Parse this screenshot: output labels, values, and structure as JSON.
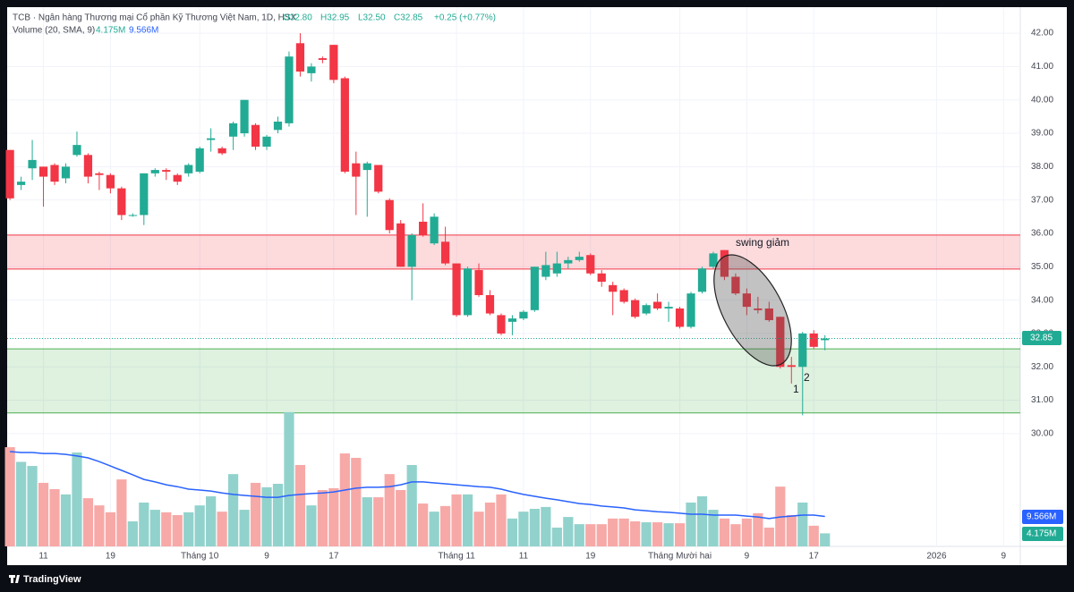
{
  "chart_data": {
    "type": "candlestick",
    "title": "TCB · Ngân hàng Thương mại Cổ phần Kỹ Thương Việt Nam, 1D, HSX",
    "ohlc_labels": [
      "O32.80",
      "H32.95",
      "L32.50",
      "C32.85"
    ],
    "change_label": "+0.25 (+0.77%)",
    "price_label": "32.85",
    "footer": "TradingView",
    "up_color": "#22ab94",
    "down_color": "#f23645",
    "open": [
      38.5,
      37.45,
      37.95,
      38.0,
      38.05,
      37.65,
      38.35,
      38.35,
      37.8,
      37.75,
      37.35,
      36.55,
      36.55,
      37.8,
      37.9,
      37.75,
      37.8,
      37.85,
      38.8,
      38.55,
      38.9,
      39.0,
      39.25,
      38.6,
      39.1,
      39.3,
      41.7,
      40.8,
      41.25,
      41.65,
      40.65,
      38.1,
      37.9,
      38.05,
      37.0,
      36.3,
      35.0,
      36.35,
      35.7,
      35.75,
      35.1,
      33.55,
      34.9,
      34.15,
      33.55,
      33.35,
      33.45,
      33.7,
      34.7,
      34.8,
      35.1,
      35.2,
      35.35,
      34.8,
      34.45,
      34.3,
      34.0,
      33.6,
      33.95,
      33.75,
      33.75,
      33.2,
      34.25,
      35.0,
      35.5,
      34.7,
      34.2,
      33.75,
      33.75,
      33.5,
      32.05,
      32.0,
      33.0,
      32.8
    ],
    "high": [
      38.5,
      37.7,
      38.8,
      38.0,
      38.1,
      38.1,
      39.05,
      38.4,
      37.85,
      37.8,
      37.4,
      36.6,
      37.8,
      37.95,
      37.95,
      37.8,
      38.1,
      38.6,
      39.15,
      38.6,
      39.35,
      40.0,
      39.3,
      38.95,
      39.5,
      41.45,
      42.0,
      41.1,
      41.3,
      41.65,
      40.7,
      38.45,
      38.15,
      38.05,
      37.05,
      36.4,
      36.0,
      36.9,
      36.6,
      36.2,
      35.1,
      35.0,
      35.1,
      34.3,
      33.6,
      33.55,
      33.7,
      35.0,
      35.45,
      35.45,
      35.3,
      35.45,
      35.4,
      34.9,
      34.55,
      34.35,
      34.05,
      33.9,
      34.2,
      33.95,
      33.8,
      34.25,
      35.0,
      35.45,
      35.5,
      34.8,
      34.35,
      34.1,
      33.95,
      33.5,
      32.3,
      33.05,
      33.1,
      32.95
    ],
    "low": [
      37.0,
      37.3,
      37.6,
      36.8,
      37.45,
      37.5,
      38.3,
      37.5,
      37.3,
      37.2,
      36.4,
      36.5,
      36.25,
      37.7,
      37.6,
      37.45,
      37.7,
      37.8,
      38.45,
      38.35,
      38.5,
      38.9,
      38.5,
      38.5,
      39.0,
      39.2,
      40.7,
      40.55,
      41.1,
      40.5,
      37.8,
      36.55,
      36.5,
      37.2,
      36.0,
      35.0,
      34.0,
      35.9,
      35.65,
      35.05,
      33.5,
      33.5,
      34.1,
      33.55,
      32.95,
      32.95,
      33.4,
      33.65,
      34.6,
      34.7,
      34.95,
      35.15,
      34.75,
      34.4,
      33.55,
      33.9,
      33.45,
      33.55,
      33.7,
      33.35,
      33.15,
      33.15,
      34.2,
      34.95,
      34.6,
      34.15,
      33.55,
      33.6,
      33.35,
      31.95,
      31.5,
      30.55,
      32.55,
      32.5
    ],
    "close": [
      37.05,
      37.55,
      38.2,
      37.7,
      37.55,
      38.0,
      38.65,
      37.7,
      37.75,
      37.35,
      36.55,
      36.55,
      37.8,
      37.9,
      37.85,
      37.55,
      38.05,
      38.55,
      38.85,
      38.4,
      39.3,
      40.0,
      38.6,
      38.9,
      39.35,
      41.3,
      40.85,
      41.0,
      41.2,
      40.6,
      37.85,
      37.7,
      38.1,
      37.25,
      36.1,
      35.0,
      35.95,
      35.95,
      36.5,
      35.1,
      33.55,
      34.95,
      34.15,
      33.6,
      33.0,
      33.45,
      33.65,
      35.0,
      35.05,
      35.1,
      35.2,
      35.3,
      34.8,
      34.55,
      34.25,
      33.95,
      33.5,
      33.85,
      33.75,
      33.8,
      33.2,
      34.2,
      34.95,
      35.4,
      34.7,
      34.2,
      33.8,
      33.7,
      33.4,
      32.0,
      32.0,
      33.0,
      32.6,
      32.85
    ],
    "volume": {
      "name": "Volume (20, SMA, 9)",
      "up_color": "#92d2cc",
      "down_color": "#f7a9a7",
      "last_label": "4.175M",
      "values": [
        31.7,
        27,
        25.7,
        20.3,
        18.3,
        16.6,
        30,
        15.4,
        13.1,
        10.9,
        21.4,
        8,
        14,
        11.7,
        10.9,
        10,
        10.9,
        13.1,
        16,
        11.1,
        23.1,
        11.7,
        20.3,
        18.9,
        20,
        42.9,
        26,
        13.1,
        18,
        18.6,
        29.7,
        28.3,
        15.7,
        15.7,
        23.1,
        18,
        26,
        13.7,
        11.1,
        12.9,
        16.6,
        16.6,
        11.1,
        14,
        16.6,
        8.9,
        11.1,
        12,
        12.6,
        6,
        9.4,
        7.1,
        7.1,
        7.1,
        8.9,
        8.9,
        8,
        7.7,
        7.7,
        7.4,
        7.4,
        14,
        16,
        11.7,
        8.9,
        7.1,
        8.9,
        10.6,
        6,
        19.1,
        10,
        14,
        6.6,
        4.175
      ]
    },
    "sma": {
      "color": "#2962ff",
      "last_label": "9.566M",
      "values": [
        30.3,
        30.0,
        30.0,
        29.7,
        29.7,
        29.4,
        28.9,
        28.3,
        27.1,
        25.7,
        24.3,
        22.9,
        21.4,
        20.6,
        19.7,
        19.1,
        18.3,
        18.0,
        17.7,
        17.1,
        16.6,
        16.3,
        16.0,
        15.7,
        15.7,
        16.3,
        16.6,
        16.9,
        17.1,
        17.4,
        18.0,
        18.6,
        18.9,
        18.9,
        19.1,
        19.7,
        20.6,
        20.6,
        20.3,
        20.0,
        19.7,
        19.4,
        19.1,
        18.9,
        18.3,
        17.4,
        16.6,
        16.0,
        15.4,
        14.9,
        14.3,
        13.7,
        13.4,
        12.9,
        12.6,
        12.3,
        11.7,
        11.4,
        11.1,
        10.9,
        10.6,
        10.3,
        10.3,
        10.0,
        10.0,
        10.0,
        9.7,
        9.4,
        8.9,
        9.4,
        9.7,
        10.0,
        10.0,
        9.566
      ]
    },
    "zones": [
      {
        "low": 34.93,
        "high": 35.95,
        "color": "#f23645"
      },
      {
        "low": 30.62,
        "high": 32.54,
        "color": "#4caf50"
      }
    ],
    "annotations": [
      "swing giảm",
      "1",
      "2"
    ],
    "xlim": [
      -0.25,
      90.5
    ],
    "ylim": [
      26.62,
      42.78
    ],
    "vlim": [
      0,
      172.3
    ],
    "yticks": [
      {
        "value": 30,
        "label": "30.00"
      },
      {
        "value": 31,
        "label": "31.00"
      },
      {
        "value": 32,
        "label": "32.00"
      },
      {
        "value": 33,
        "label": "33.00"
      },
      {
        "value": 34,
        "label": "34.00"
      },
      {
        "value": 35,
        "label": "35.00"
      },
      {
        "value": 36,
        "label": "36.00"
      },
      {
        "value": 37,
        "label": "37.00"
      },
      {
        "value": 38,
        "label": "38.00"
      },
      {
        "value": 39,
        "label": "39.00"
      },
      {
        "value": 40,
        "label": "40.00"
      },
      {
        "value": 41,
        "label": "41.00"
      },
      {
        "value": 42,
        "label": "42.00"
      }
    ],
    "xticks": [
      {
        "value": 3,
        "label": "11"
      },
      {
        "value": 9,
        "label": "19"
      },
      {
        "value": 17,
        "label": "Tháng 10"
      },
      {
        "value": 23,
        "label": "9"
      },
      {
        "value": 29,
        "label": "17"
      },
      {
        "value": 40,
        "label": "Tháng 11"
      },
      {
        "value": 46,
        "label": "11"
      },
      {
        "value": 52,
        "label": "19"
      },
      {
        "value": 60,
        "label": "Tháng Mười hai"
      },
      {
        "value": 66,
        "label": "9"
      },
      {
        "value": 72,
        "label": "17"
      },
      {
        "value": 83,
        "label": "2026"
      },
      {
        "value": 89,
        "label": "9"
      }
    ]
  }
}
